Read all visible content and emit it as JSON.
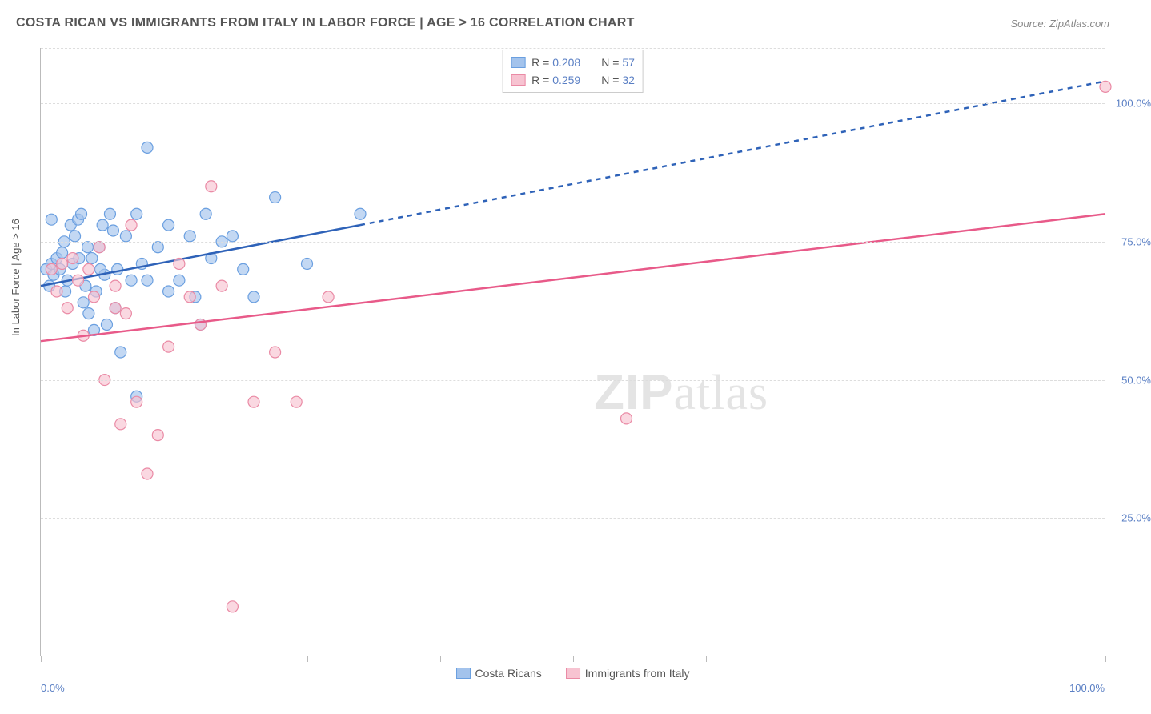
{
  "title": "COSTA RICAN VS IMMIGRANTS FROM ITALY IN LABOR FORCE | AGE > 16 CORRELATION CHART",
  "source": "Source: ZipAtlas.com",
  "ylabel": "In Labor Force | Age > 16",
  "watermark_a": "ZIP",
  "watermark_b": "atlas",
  "chart": {
    "type": "scatter",
    "xlim": [
      0,
      100
    ],
    "ylim": [
      0,
      110
    ],
    "y_ticks": [
      25,
      50,
      75,
      100
    ],
    "y_tick_labels": [
      "25.0%",
      "50.0%",
      "75.0%",
      "100.0%"
    ],
    "x_ticks_minor": [
      0,
      12.5,
      25,
      37.5,
      50,
      62.5,
      75,
      87.5,
      100
    ],
    "x_labels": [
      {
        "v": 0,
        "t": "0.0%"
      },
      {
        "v": 100,
        "t": "100.0%"
      }
    ],
    "background": "#ffffff",
    "grid_color": "#dddddd",
    "series": [
      {
        "name": "Costa Ricans",
        "color_fill": "#a3c3ec",
        "color_stroke": "#6a9fe0",
        "marker_r": 7,
        "marker_opacity": 0.65,
        "R": "0.208",
        "N": "57",
        "trend": {
          "color": "#2e62b8",
          "width": 2.5,
          "x1": 0,
          "y1": 67,
          "x2": 30,
          "y2": 78,
          "dash_to_x": 100,
          "dash_to_y": 104
        },
        "points": [
          [
            0.5,
            70
          ],
          [
            1,
            71
          ],
          [
            1.2,
            69
          ],
          [
            1.5,
            72
          ],
          [
            1.8,
            70
          ],
          [
            2,
            73
          ],
          [
            2.2,
            75
          ],
          [
            2.5,
            68
          ],
          [
            2.8,
            78
          ],
          [
            3,
            71
          ],
          [
            3.2,
            76
          ],
          [
            3.5,
            79
          ],
          [
            3.8,
            80
          ],
          [
            4,
            64
          ],
          [
            4.2,
            67
          ],
          [
            4.5,
            62
          ],
          [
            4.8,
            72
          ],
          [
            5,
            59
          ],
          [
            5.2,
            66
          ],
          [
            5.5,
            74
          ],
          [
            5.8,
            78
          ],
          [
            6,
            69
          ],
          [
            6.2,
            60
          ],
          [
            6.5,
            80
          ],
          [
            7,
            63
          ],
          [
            7.2,
            70
          ],
          [
            7.5,
            55
          ],
          [
            8,
            76
          ],
          [
            8.5,
            68
          ],
          [
            9,
            80
          ],
          [
            9.5,
            71
          ],
          [
            10,
            92
          ],
          [
            11,
            74
          ],
          [
            12,
            78
          ],
          [
            13,
            68
          ],
          [
            14,
            76
          ],
          [
            14.5,
            65
          ],
          [
            15,
            60
          ],
          [
            15.5,
            80
          ],
          [
            16,
            72
          ],
          [
            17,
            75
          ],
          [
            18,
            76
          ],
          [
            19,
            70
          ],
          [
            20,
            65
          ],
          [
            22,
            83
          ],
          [
            25,
            71
          ],
          [
            30,
            80
          ],
          [
            9,
            47
          ],
          [
            10,
            68
          ],
          [
            12,
            66
          ],
          [
            1,
            79
          ],
          [
            0.8,
            67
          ],
          [
            2.3,
            66
          ],
          [
            3.6,
            72
          ],
          [
            4.4,
            74
          ],
          [
            5.6,
            70
          ],
          [
            6.8,
            77
          ]
        ]
      },
      {
        "name": "Immigrants from Italy",
        "color_fill": "#f7c3d1",
        "color_stroke": "#ea8aa5",
        "marker_r": 7,
        "marker_opacity": 0.65,
        "R": "0.259",
        "N": "32",
        "trend": {
          "color": "#e85a89",
          "width": 2.5,
          "x1": 0,
          "y1": 57,
          "x2": 100,
          "y2": 80
        },
        "points": [
          [
            1,
            70
          ],
          [
            1.5,
            66
          ],
          [
            2,
            71
          ],
          [
            2.5,
            63
          ],
          [
            3,
            72
          ],
          [
            3.5,
            68
          ],
          [
            4,
            58
          ],
          [
            4.5,
            70
          ],
          [
            5,
            65
          ],
          [
            5.5,
            74
          ],
          [
            6,
            50
          ],
          [
            7,
            67
          ],
          [
            7.5,
            42
          ],
          [
            8,
            62
          ],
          [
            8.5,
            78
          ],
          [
            9,
            46
          ],
          [
            10,
            33
          ],
          [
            11,
            40
          ],
          [
            12,
            56
          ],
          [
            13,
            71
          ],
          [
            14,
            65
          ],
          [
            15,
            60
          ],
          [
            16,
            85
          ],
          [
            17,
            67
          ],
          [
            18,
            9
          ],
          [
            20,
            46
          ],
          [
            22,
            55
          ],
          [
            24,
            46
          ],
          [
            27,
            65
          ],
          [
            55,
            43
          ],
          [
            100,
            103
          ],
          [
            7,
            63
          ]
        ]
      }
    ]
  },
  "legend_top_labels": {
    "R": "R",
    "N": "N",
    "eq": "="
  },
  "legend_bottom": [
    "Costa Ricans",
    "Immigrants from Italy"
  ]
}
